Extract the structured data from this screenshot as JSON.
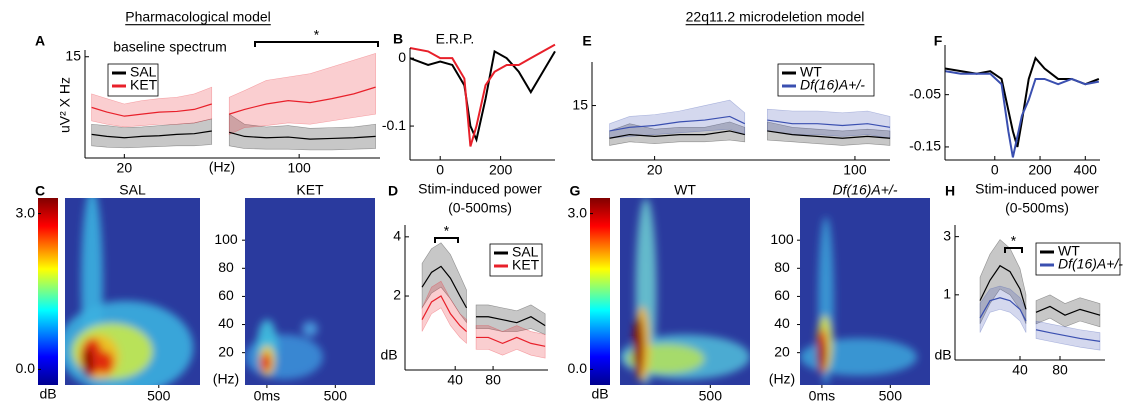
{
  "headers": [
    "Pharmacological model",
    "22q11.2 microdeletion model"
  ],
  "chart_data": [
    {
      "panel": "A",
      "type": "line",
      "subtitle": "baseline spectrum",
      "ylabel": "uV² X Hz",
      "xlabel": "(Hz)",
      "annotation": "*",
      "xlim": [
        2,
        137
      ],
      "xticks": [
        20,
        100
      ],
      "ylim": [
        0,
        16
      ],
      "yticks": [
        15
      ],
      "legend": "upper left",
      "x": [
        5,
        12,
        20,
        28,
        36,
        44,
        52,
        60,
        66,
        68,
        75,
        85,
        95,
        105,
        115,
        125,
        135
      ],
      "series": [
        {
          "name": "SAL",
          "color": "#000000",
          "values": [
            3.5,
            3.2,
            3.0,
            3.2,
            3.3,
            3.5,
            3.6,
            4.0,
            null,
            3.8,
            3.2,
            3.0,
            3.1,
            2.8,
            2.9,
            3.0,
            3.2
          ],
          "lower": [
            1.8,
            1.6,
            1.5,
            1.6,
            1.7,
            1.8,
            1.8,
            2.0,
            null,
            1.8,
            1.4,
            1.3,
            1.3,
            1.2,
            1.2,
            1.3,
            1.4
          ],
          "upper": [
            5.0,
            4.8,
            4.5,
            4.6,
            4.8,
            5.0,
            5.2,
            5.8,
            null,
            6.5,
            5.0,
            4.6,
            4.8,
            4.4,
            4.5,
            4.6,
            5.0
          ]
        },
        {
          "name": "KET",
          "color": "#e8202a",
          "values": [
            7.5,
            6.8,
            6.2,
            6.5,
            6.8,
            6.9,
            7.2,
            8.0,
            null,
            6.5,
            7.2,
            8.0,
            8.5,
            8.2,
            8.8,
            9.5,
            10.5
          ],
          "lower": [
            5.5,
            5.0,
            4.6,
            4.8,
            5.0,
            5.0,
            5.2,
            5.8,
            null,
            3.5,
            4.5,
            4.8,
            5.2,
            5.0,
            5.5,
            6.0,
            6.5
          ],
          "upper": [
            9.5,
            8.8,
            8.0,
            8.5,
            8.8,
            9.0,
            9.5,
            10.5,
            null,
            9.0,
            10.0,
            11.5,
            12.0,
            12.5,
            13.5,
            14.5,
            15.5
          ]
        }
      ]
    },
    {
      "panel": "B",
      "type": "line",
      "title": "E.R.P.",
      "xlim": [
        -100,
        380
      ],
      "xticks": [
        0,
        200
      ],
      "ylim": [
        -0.15,
        0.015
      ],
      "yticks": [
        0,
        -0.1
      ],
      "x": [
        -100,
        -40,
        0,
        40,
        80,
        100,
        120,
        150,
        180,
        220,
        260,
        300,
        340,
        380
      ],
      "series": [
        {
          "color": "#000000",
          "values": [
            0.0,
            -0.01,
            -0.005,
            -0.01,
            -0.04,
            -0.1,
            -0.12,
            -0.06,
            0.01,
            0.0,
            -0.02,
            -0.05,
            -0.02,
            0.01
          ]
        },
        {
          "color": "#e8202a",
          "values": [
            0.015,
            0.01,
            0.0,
            0.0,
            -0.03,
            -0.13,
            -0.1,
            -0.04,
            -0.02,
            -0.01,
            -0.01,
            0.0,
            0.01,
            0.02
          ]
        }
      ]
    },
    {
      "panel": "E",
      "type": "line",
      "xlim": [
        -5,
        114
      ],
      "xticks": [
        20,
        100
      ],
      "ylim": [
        0,
        27
      ],
      "yticks": [
        15
      ],
      "legend": "upper right",
      "x": [
        2,
        10,
        20,
        30,
        40,
        50,
        56,
        58,
        65,
        75,
        85,
        95,
        105,
        114
      ],
      "series": [
        {
          "name": "WT",
          "color": "#000000",
          "values": [
            6,
            7,
            6.5,
            7,
            7,
            8,
            7,
            null,
            8,
            7,
            6.5,
            6,
            6.5,
            6
          ],
          "lower": [
            4,
            5,
            4.5,
            5,
            5,
            5.5,
            5,
            null,
            5.5,
            5,
            4.5,
            4,
            4.5,
            4
          ],
          "upper": [
            8,
            10,
            8.5,
            9,
            9,
            10.5,
            9,
            null,
            10.5,
            9,
            8.5,
            8,
            8.5,
            8
          ]
        },
        {
          "name": "Df(16)A+/-",
          "color": "#3a4fb0",
          "values": [
            8,
            9,
            9.5,
            10.5,
            11,
            12,
            10,
            null,
            11,
            10,
            10,
            9.5,
            10,
            9
          ],
          "lower": [
            6,
            6.5,
            7,
            7.5,
            8,
            8.5,
            7,
            null,
            8,
            7,
            7,
            6.5,
            7,
            6
          ],
          "upper": [
            10,
            12,
            12.5,
            13.5,
            15,
            16.5,
            13,
            null,
            14,
            13.5,
            13.5,
            13,
            13.5,
            12
          ]
        }
      ]
    },
    {
      "panel": "F",
      "type": "line",
      "xlim": [
        -220,
        465
      ],
      "xticks": [
        0,
        200,
        400
      ],
      "ylim": [
        -0.175,
        0.045
      ],
      "yticks": [
        -0.05,
        -0.15
      ],
      "x": [
        -220,
        -150,
        -80,
        -20,
        30,
        60,
        80,
        100,
        120,
        150,
        180,
        220,
        280,
        340,
        400,
        460
      ],
      "series": [
        {
          "color": "#000000",
          "values": [
            0,
            -0.005,
            -0.01,
            -0.005,
            -0.02,
            -0.08,
            -0.12,
            -0.15,
            -0.1,
            -0.02,
            0.02,
            0.0,
            -0.02,
            -0.02,
            -0.03,
            -0.02
          ]
        },
        {
          "color": "#3a4fb0",
          "values": [
            -0.005,
            -0.01,
            -0.01,
            -0.01,
            -0.03,
            -0.12,
            -0.17,
            -0.13,
            -0.09,
            -0.06,
            -0.02,
            -0.02,
            -0.03,
            -0.02,
            -0.03,
            -0.025
          ]
        }
      ]
    },
    {
      "panel": "C",
      "type": "heatmap",
      "colorbar": {
        "ticks": [
          {
            "value": 3,
            "label": "3.0"
          },
          {
            "value": 0,
            "label": "0.0"
          }
        ],
        "label": "dB",
        "lim": [
          -0.3,
          3.3
        ]
      },
      "xlim": [
        -160,
        790
      ],
      "ylim": [
        -3,
        130
      ],
      "yticks": [
        20,
        40,
        60,
        80,
        100
      ],
      "ylabel": "(Hz)",
      "maps": [
        {
          "title": "SAL",
          "xticks": [
            500
          ]
        },
        {
          "title": "KET",
          "xticks": [
            {
              "value": 0,
              "label": "0ms"
            },
            500
          ]
        }
      ]
    },
    {
      "panel": "D",
      "type": "line",
      "title": "Stim-induced power",
      "subtitle": "(0-500ms)",
      "ylabel": "dB",
      "annotation": "*",
      "xlim": [
        -13,
        138
      ],
      "xticks": [
        40,
        80
      ],
      "ylim": [
        -0.5,
        4.4
      ],
      "yticks": [
        2,
        4
      ],
      "legend": "upper right",
      "x": [
        5,
        15,
        25,
        35,
        45,
        52,
        56,
        62,
        75,
        90,
        105,
        120,
        135
      ],
      "series": [
        {
          "name": "SAL",
          "color": "#000000",
          "values": [
            2.3,
            2.8,
            3.0,
            2.6,
            2.0,
            1.6,
            null,
            1.3,
            1.3,
            1.2,
            1.1,
            1.3,
            1.0
          ],
          "lower": [
            1.6,
            2.1,
            2.3,
            1.9,
            1.4,
            1.1,
            null,
            0.9,
            0.9,
            0.8,
            0.8,
            0.9,
            0.7
          ],
          "upper": [
            3.1,
            3.6,
            3.8,
            3.4,
            2.7,
            2.2,
            null,
            1.7,
            1.7,
            1.6,
            1.5,
            1.7,
            1.4
          ]
        },
        {
          "name": "KET",
          "color": "#e8202a",
          "values": [
            1.2,
            1.8,
            2.0,
            1.4,
            1.0,
            0.8,
            null,
            0.6,
            0.6,
            0.4,
            0.6,
            0.4,
            0.3
          ],
          "lower": [
            0.8,
            1.4,
            1.6,
            1.0,
            0.6,
            0.4,
            null,
            0.2,
            0.2,
            0.0,
            0.2,
            0.0,
            -0.1
          ],
          "upper": [
            1.6,
            2.3,
            2.5,
            1.9,
            1.4,
            1.2,
            null,
            1.0,
            1.0,
            0.8,
            1.0,
            0.8,
            0.7
          ]
        }
      ]
    },
    {
      "panel": "G",
      "type": "heatmap",
      "colorbar": {
        "ticks": [
          {
            "value": 3,
            "label": "3.0"
          },
          {
            "value": 0,
            "label": "0.0"
          }
        ],
        "label": "dB",
        "lim": [
          -0.3,
          3.3
        ]
      },
      "xlim": [
        -160,
        790
      ],
      "ylim": [
        -3,
        130
      ],
      "yticks": [
        20,
        40,
        60,
        80,
        100
      ],
      "ylabel": "(Hz)",
      "maps": [
        {
          "title": "WT",
          "xticks": [
            500
          ]
        },
        {
          "title": "Df(16)A+/-",
          "xticks": [
            {
              "value": 0,
              "label": "0ms"
            },
            500
          ]
        }
      ]
    },
    {
      "panel": "H",
      "type": "line",
      "title": "Stim-induced power",
      "subtitle": "(0-500ms)",
      "ylabel": "dB",
      "annotation": "*",
      "xlim": [
        -25,
        125
      ],
      "xticks": [
        40,
        80
      ],
      "ylim": [
        -1.24,
        3.4
      ],
      "yticks": [
        1,
        3
      ],
      "legend": "upper right",
      "x": [
        0,
        10,
        20,
        30,
        40,
        46,
        50,
        56,
        70,
        85,
        100,
        120
      ],
      "series": [
        {
          "name": "WT",
          "color": "#000000",
          "values": [
            0.8,
            1.5,
            2.0,
            1.8,
            1.2,
            0.5,
            null,
            0.4,
            0.6,
            0.3,
            0.5,
            0.3
          ],
          "lower": [
            0,
            0.7,
            1.2,
            1.0,
            0.5,
            0,
            null,
            0,
            0.2,
            -0.1,
            0.1,
            -0.1
          ],
          "upper": [
            1.6,
            2.4,
            2.9,
            2.6,
            1.9,
            1.0,
            null,
            0.8,
            1.0,
            0.7,
            0.9,
            0.7
          ]
        },
        {
          "name": "Df(16)A+/-",
          "color": "#3a4fb0",
          "values": [
            0.2,
            0.8,
            0.9,
            0.8,
            0.5,
            0.1,
            null,
            -0.2,
            -0.3,
            -0.4,
            -0.5,
            -0.6
          ],
          "lower": [
            -0.3,
            0.4,
            0.5,
            0.4,
            0.1,
            -0.3,
            null,
            -0.5,
            -0.6,
            -0.7,
            -0.8,
            -0.9
          ],
          "upper": [
            0.7,
            1.2,
            1.3,
            1.2,
            0.9,
            0.5,
            null,
            0.1,
            0.0,
            -0.1,
            -0.2,
            -0.3
          ]
        }
      ]
    }
  ]
}
